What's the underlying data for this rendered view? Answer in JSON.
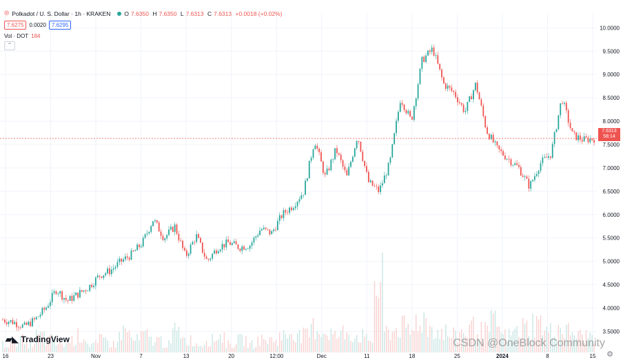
{
  "header": {
    "symbol_title": "Polkadot / U. S. Dollar · 1h · KRAKEN",
    "open_label": "O",
    "open": "7.6350",
    "high_label": "H",
    "high": "7.6350",
    "low_label": "L",
    "low": "7.6313",
    "close_label": "C",
    "close": "7.6313",
    "change": "+0.0018 (+0.02%)"
  },
  "bid_ask": {
    "bid": "7.6275",
    "spread": "0.0020",
    "ask": "7.6295"
  },
  "volume": {
    "label": "Vol · DOT",
    "value": "184"
  },
  "current_price_label": {
    "price": "7.6313",
    "countdown": "58:14"
  },
  "branding": {
    "logo_text": "TradingView",
    "watermark": "CSDN @OneBlock Community"
  },
  "colors": {
    "up": "#26a69a",
    "down": "#ef5350",
    "grid": "#f0f3fa"
  },
  "chart_data": {
    "type": "line",
    "y_ticks": [
      "10.0000",
      "9.5000",
      "9.0000",
      "8.5000",
      "8.0000",
      "7.5000",
      "7.0000",
      "6.5000",
      "6.0000",
      "5.5000",
      "5.0000",
      "4.5000",
      "4.0000",
      "3.5000"
    ],
    "x_ticks": [
      "16",
      "23",
      "Nov",
      "7",
      "13",
      "20",
      "12:00",
      "Dec",
      "11",
      "18",
      "25",
      "2024",
      "8",
      "15"
    ],
    "ylim": [
      3.05,
      10.3
    ],
    "current_price": 7.6313,
    "price_path": [
      3.75,
      3.7,
      3.6,
      3.75,
      4.0,
      4.4,
      4.15,
      4.3,
      4.45,
      4.7,
      4.8,
      5.0,
      5.15,
      5.4,
      5.9,
      5.5,
      5.75,
      5.1,
      5.55,
      5.0,
      5.3,
      5.4,
      5.3,
      5.35,
      5.7,
      5.6,
      6.0,
      6.2,
      6.5,
      7.6,
      6.8,
      7.4,
      6.8,
      7.7,
      6.7,
      6.5,
      7.1,
      8.5,
      8.0,
      9.3,
      9.55,
      8.8,
      8.6,
      8.2,
      8.8,
      7.8,
      7.4,
      7.2,
      7.0,
      6.6,
      7.1,
      7.3,
      8.5,
      7.7,
      7.6,
      7.63
    ],
    "volume": [
      2,
      3,
      2,
      4,
      3,
      2,
      3,
      4,
      2,
      3,
      2,
      5,
      3,
      4,
      3,
      2,
      5,
      3,
      2,
      3,
      4,
      2,
      3,
      2,
      3,
      3,
      4,
      5,
      4,
      6,
      5,
      4,
      5,
      4,
      3,
      16,
      5,
      6,
      5,
      8,
      6,
      5,
      4,
      5,
      6,
      5,
      7,
      4,
      5,
      6,
      7,
      5,
      6,
      5,
      4,
      4
    ],
    "grid": true,
    "legend_position": "top-left"
  }
}
